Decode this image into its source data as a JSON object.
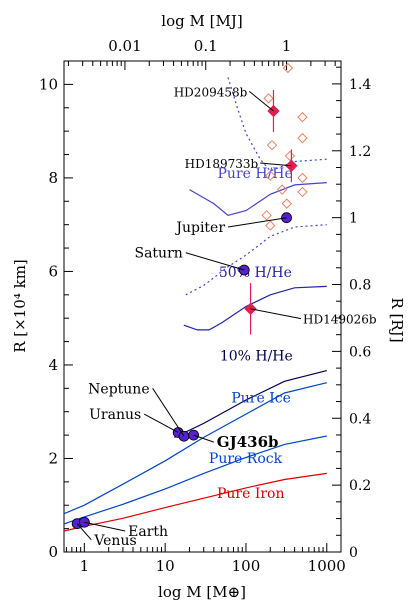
{
  "chart_data": {
    "type": "scatter",
    "title": "",
    "xlabel": "log M [M⊕]",
    "xlabel_top": "log M [MJ]",
    "ylabel": "R [×10⁴ km]",
    "ylabel_right": "R [RJ]",
    "xscale": "log",
    "xlim": [
      0.56,
      1500
    ],
    "ylim": [
      0,
      10.5
    ],
    "ylim_right": [
      0,
      1.4685
    ],
    "x_ticks": [
      {
        "value": 1,
        "label": "1"
      },
      {
        "value": 10,
        "label": "10"
      },
      {
        "value": 100,
        "label": "100"
      },
      {
        "value": 1000,
        "label": "1000"
      }
    ],
    "x_top_ticks": [
      {
        "value": 3.178,
        "label": "0.01"
      },
      {
        "value": 31.78,
        "label": "0.1"
      },
      {
        "value": 317.8,
        "label": "1"
      }
    ],
    "y_ticks": [
      {
        "value": 0,
        "label": "0"
      },
      {
        "value": 2,
        "label": "2"
      },
      {
        "value": 4,
        "label": "4"
      },
      {
        "value": 6,
        "label": "6"
      },
      {
        "value": 8,
        "label": "8"
      },
      {
        "value": 10,
        "label": "10"
      }
    ],
    "y_right_ticks": [
      {
        "value": 0,
        "label": "0"
      },
      {
        "value": 0.2,
        "label": "0.2"
      },
      {
        "value": 0.4,
        "label": "0.4"
      },
      {
        "value": 0.6,
        "label": "0.6"
      },
      {
        "value": 0.8,
        "label": "0.8"
      },
      {
        "value": 1,
        "label": "1"
      },
      {
        "value": 1.2,
        "label": "1.2"
      },
      {
        "value": 1.4,
        "label": "1.4"
      }
    ],
    "series": [
      {
        "label": "Pure Iron",
        "color": "#dd0000",
        "style": "solid",
        "x": [
          0.56,
          1,
          3,
          10,
          30,
          100,
          300,
          1000
        ],
        "y": [
          0.45,
          0.55,
          0.72,
          0.95,
          1.15,
          1.37,
          1.55,
          1.68
        ]
      },
      {
        "label": "Pure Rock",
        "color": "#0044cc",
        "style": "solid",
        "x": [
          0.56,
          1,
          3,
          10,
          30,
          100,
          300,
          1000
        ],
        "y": [
          0.6,
          0.75,
          1.02,
          1.35,
          1.68,
          2.02,
          2.3,
          2.48
        ]
      },
      {
        "label": "Pure Ice",
        "color": "#0044cc",
        "style": "solid",
        "x": [
          0.56,
          1,
          3,
          10,
          30,
          100,
          300,
          1000
        ],
        "y": [
          0.82,
          1.0,
          1.45,
          1.95,
          2.45,
          2.95,
          3.4,
          3.62
        ]
      },
      {
        "label": "10% H/He",
        "color": "#000055",
        "style": "solid",
        "x": [
          13,
          30,
          100,
          300,
          1000
        ],
        "y": [
          2.45,
          2.75,
          3.25,
          3.65,
          3.88
        ]
      },
      {
        "label": "50% H/He",
        "color": "#2222aa",
        "style": "solid",
        "x": [
          17,
          25,
          35,
          50,
          100,
          200,
          400,
          1000
        ],
        "y": [
          4.85,
          4.75,
          4.75,
          4.9,
          5.25,
          5.5,
          5.65,
          5.68
        ]
      },
      {
        "label": "Pure H/He",
        "color": "#4444cc",
        "style": "solid",
        "x": [
          20,
          40,
          60,
          100,
          200,
          400,
          1000
        ],
        "y": [
          7.75,
          7.45,
          7.2,
          7.3,
          7.65,
          7.85,
          7.9
        ]
      },
      {
        "label": "",
        "color": "#4444cc",
        "style": "dashed",
        "x": [
          18,
          30,
          60,
          100,
          200,
          400,
          1000
        ],
        "y": [
          5.5,
          5.7,
          6.1,
          6.35,
          6.75,
          6.95,
          7.0
        ]
      },
      {
        "label": "",
        "color": "#4444cc",
        "style": "dashed",
        "x": [
          60,
          80,
          100,
          150,
          200,
          400,
          1000
        ],
        "y": [
          10.15,
          9.45,
          8.95,
          8.4,
          8.15,
          8.35,
          8.4
        ]
      }
    ],
    "series_labels": [
      {
        "text": "Pure Iron",
        "color": "#dd0000",
        "x": 300,
        "y": 1.15
      },
      {
        "text": "Pure Rock",
        "color": "#0044cc",
        "x": 280,
        "y": 1.9
      },
      {
        "text": "Pure Ice",
        "color": "#0044cc",
        "x": 360,
        "y": 3.2
      },
      {
        "text": "10% H/He",
        "color": "#000055",
        "x": 380,
        "y": 4.1
      },
      {
        "text": "50% H/He",
        "color": "#2222aa",
        "x": 370,
        "y": 5.88
      },
      {
        "text": "Pure H/He",
        "color": "#4444cc",
        "x": 380,
        "y": 8.0
      }
    ],
    "planets": [
      {
        "name": "Venus",
        "x": 0.815,
        "y": 0.605,
        "lx": 1.22,
        "ly": 0.26,
        "bold": false
      },
      {
        "name": "Earth",
        "x": 1.0,
        "y": 0.637,
        "lx": 3.2,
        "ly": 0.45,
        "bold": false
      },
      {
        "name": "Uranus",
        "x": 14.5,
        "y": 2.556,
        "lx": 5.5,
        "ly": 2.95,
        "bold": false
      },
      {
        "name": "Neptune",
        "x": 17.1,
        "y": 2.476,
        "lx": 7.0,
        "ly": 3.5,
        "bold": false
      },
      {
        "name": "GJ436b",
        "x": 22.5,
        "y": 2.5,
        "lx": 40,
        "ly": 2.35,
        "bold": true
      },
      {
        "name": "Saturn",
        "x": 95.2,
        "y": 6.03,
        "lx": 18,
        "ly": 6.4,
        "bold": false
      },
      {
        "name": "Jupiter",
        "x": 317.8,
        "y": 7.149,
        "lx": 60,
        "ly": 6.95,
        "bold": false
      }
    ],
    "exoplanets": [
      {
        "name": "HD209458b",
        "x": 219,
        "y": 9.43,
        "yerr": 0.45,
        "xerr": 18,
        "lx": 110,
        "ly": 9.85
      },
      {
        "name": "HD189733b",
        "x": 365,
        "y": 8.26,
        "yerr": 0.35,
        "xerr": 20,
        "lx": 150,
        "ly": 8.32
      },
      {
        "name": "HD149026b",
        "x": 114,
        "y": 5.2,
        "yerr": 0.55,
        "xerr": 13,
        "lx": 480,
        "ly": 4.99
      }
    ],
    "model_points": [
      {
        "x": 330,
        "y": 10.35
      },
      {
        "x": 190,
        "y": 9.7
      },
      {
        "x": 500,
        "y": 9.3
      },
      {
        "x": 500,
        "y": 8.85
      },
      {
        "x": 210,
        "y": 8.7
      },
      {
        "x": 350,
        "y": 8.47
      },
      {
        "x": 200,
        "y": 8.05
      },
      {
        "x": 500,
        "y": 8.0
      },
      {
        "x": 280,
        "y": 7.75
      },
      {
        "x": 500,
        "y": 7.7
      },
      {
        "x": 320,
        "y": 7.45
      },
      {
        "x": 180,
        "y": 7.2
      },
      {
        "x": 200,
        "y": 6.98
      }
    ]
  }
}
